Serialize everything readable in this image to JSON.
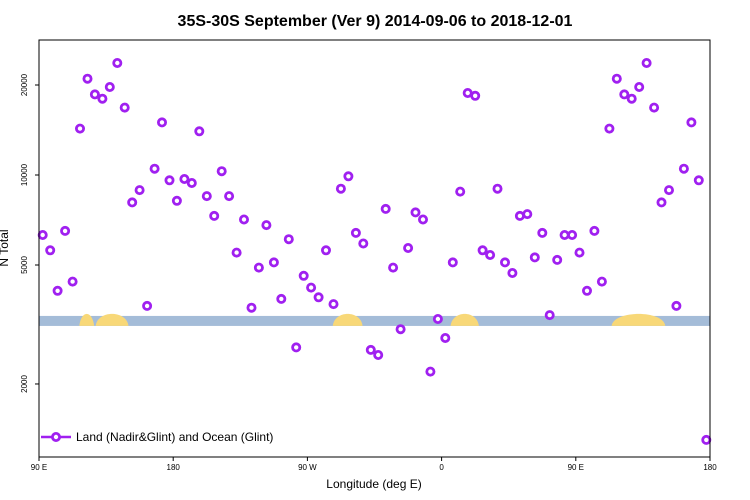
{
  "chart_data": {
    "type": "scatter",
    "title": "35S-30S September (Ver 9)   2014-09-06 to 2018-12-01",
    "xlabel": "Longitude (deg E)",
    "ylabel": "N Total",
    "x_scale_note": "axis spans 90 E to 180 (wrapping through 180, 90 W, 0, 90 E)",
    "xlim": [
      90,
      540
    ],
    "ylim": [
      1200,
      25000
    ],
    "y_scale": "log",
    "x_ticks": [
      {
        "value": 90,
        "label": "90 E"
      },
      {
        "value": 180,
        "label": "180"
      },
      {
        "value": 270,
        "label": "90 W"
      },
      {
        "value": 360,
        "label": "0"
      },
      {
        "value": 450,
        "label": "90 E"
      },
      {
        "value": 540,
        "label": "180"
      }
    ],
    "y_ticks": [
      {
        "value": 2000,
        "label": "2000"
      },
      {
        "value": 5000,
        "label": "5000"
      },
      {
        "value": 10000,
        "label": "10000"
      },
      {
        "value": 20000,
        "label": "20000"
      }
    ],
    "marker_color": "#a020f0",
    "land_band": {
      "ocean_color": "#a4bcd8",
      "land_color": "#f8d878",
      "y_value": 3250,
      "land_segments": [
        [
          117,
          127
        ],
        [
          128,
          150
        ],
        [
          287,
          307
        ],
        [
          366,
          385
        ],
        [
          474,
          510
        ]
      ]
    },
    "legend": {
      "entries": [
        "Land (Nadir&Glint) and Ocean (Glint)"
      ],
      "placement": "bottom-left"
    },
    "series": [
      {
        "name": "Land (Nadir&Glint) and Ocean (Glint)",
        "x": [
          92.5,
          97.5,
          102.5,
          107.5,
          112.5,
          117.5,
          122.5,
          127.5,
          132.5,
          137.5,
          142.5,
          147.5,
          152.5,
          157.5,
          162.5,
          167.5,
          172.5,
          177.5,
          182.5,
          187.5,
          192.5,
          197.5,
          202.5,
          207.5,
          212.5,
          217.5,
          222.5,
          227.5,
          232.5,
          237.5,
          242.5,
          247.5,
          252.5,
          257.5,
          262.5,
          267.5,
          272.5,
          277.5,
          282.5,
          287.5,
          292.5,
          297.5,
          302.5,
          307.5,
          312.5,
          317.5,
          322.5,
          327.5,
          332.5,
          337.5,
          342.5,
          347.5,
          352.5,
          357.5,
          362.5,
          367.5,
          372.5,
          377.5,
          382.5,
          387.5,
          392.5,
          397.5,
          402.5,
          407.5,
          412.5,
          417.5,
          422.5,
          427.5,
          432.5,
          437.5,
          442.5,
          447.5,
          452.5,
          457.5,
          462.5,
          467.5,
          472.5,
          477.5,
          482.5,
          487.5,
          492.5,
          497.5,
          502.5,
          507.5,
          512.5,
          517.5,
          522.5,
          527.5,
          532.5,
          537.5
        ],
        "y": [
          6300,
          5600,
          4100,
          6500,
          4400,
          14300,
          21000,
          18600,
          18000,
          19700,
          23700,
          16800,
          8100,
          8900,
          3650,
          10500,
          15000,
          9600,
          8200,
          9700,
          9400,
          14000,
          8500,
          7300,
          10300,
          8500,
          5500,
          7100,
          3600,
          4900,
          6800,
          5100,
          3850,
          6100,
          2650,
          4600,
          4200,
          3900,
          5600,
          3700,
          9000,
          9900,
          6400,
          5900,
          2600,
          2500,
          7700,
          4900,
          3050,
          5700,
          7500,
          7100,
          2200,
          3300,
          2850,
          5100,
          8800,
          18800,
          18400,
          5600,
          5400,
          9000,
          5100,
          4700,
          7300,
          7400,
          5300,
          6400,
          3400,
          5200,
          6300,
          6300,
          5500,
          4100,
          6500,
          4400,
          14300,
          21000,
          18600,
          18000,
          19700,
          23700,
          16800,
          8100,
          8900,
          3650,
          10500,
          15000,
          9600,
          1300
        ]
      }
    ]
  }
}
